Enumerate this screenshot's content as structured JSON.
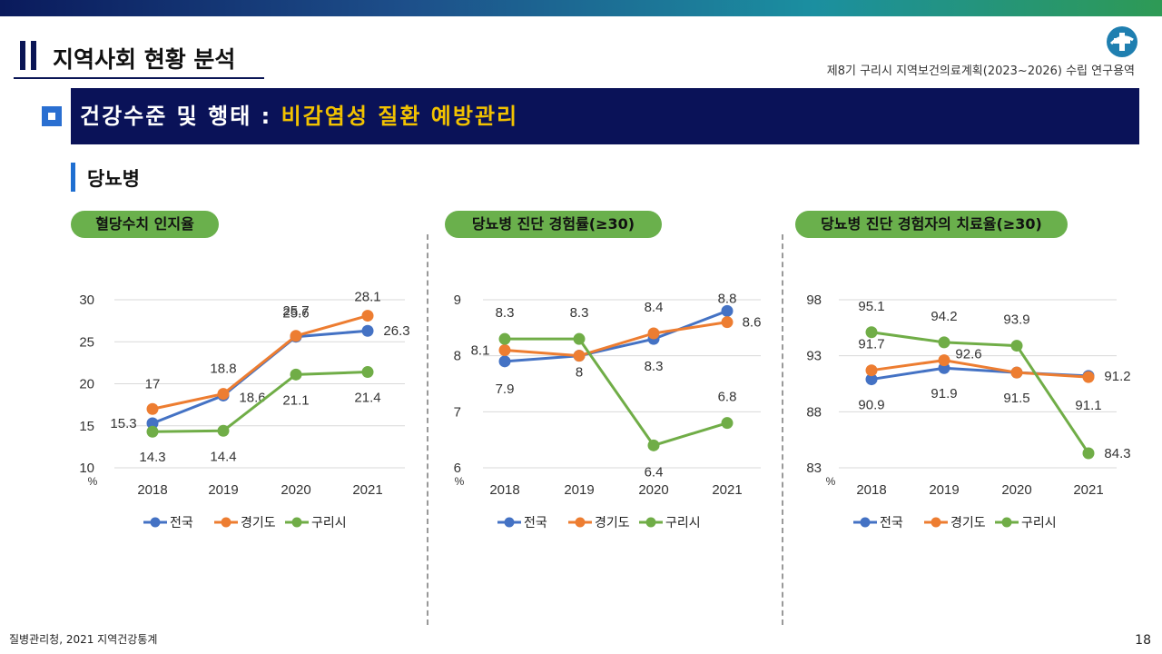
{
  "header": {
    "section_title": "지역사회 현황 분석",
    "project_title": "제8기 구리시 지역보건의료계획(2023~2026) 수립 연구용역",
    "banner_prefix": "건강수준 및 행태 : ",
    "banner_highlight": "비감염성 질환 예방관리",
    "subtitle": "당뇨병"
  },
  "colors": {
    "national": "#4472c4",
    "gyeonggi": "#ed7d31",
    "guri": "#70ad47",
    "banner_bg": "#0a1258",
    "highlight": "#f2c200",
    "pill_bg": "#6ab04c"
  },
  "chart_data": [
    {
      "type": "line",
      "title": "혈당수치 인지율",
      "x": [
        "2018",
        "2019",
        "2020",
        "2021"
      ],
      "unit": "%",
      "ylim": [
        10,
        30
      ],
      "yticks": [
        10,
        15,
        20,
        25,
        30
      ],
      "legend": "bottom",
      "series": [
        {
          "name": "전국",
          "values": [
            15.3,
            18.6,
            25.6,
            26.3
          ],
          "labels": [
            "15.3",
            "18.6",
            "25.6",
            "26.3"
          ]
        },
        {
          "name": "경기도",
          "values": [
            17,
            18.8,
            25.7,
            28.1
          ],
          "labels": [
            "17",
            "18.8",
            "25.7",
            "28.1"
          ]
        },
        {
          "name": "구리시",
          "values": [
            14.3,
            14.4,
            21.1,
            21.4
          ],
          "labels": [
            "14.3",
            "14.4",
            "21.1",
            "21.4"
          ]
        }
      ]
    },
    {
      "type": "line",
      "title": "당뇨병 진단 경험률(≥30)",
      "x": [
        "2018",
        "2019",
        "2020",
        "2021"
      ],
      "unit": "%",
      "ylim": [
        6,
        9
      ],
      "yticks": [
        6,
        7,
        8,
        9
      ],
      "legend": "bottom",
      "series": [
        {
          "name": "전국",
          "values": [
            7.9,
            8.0,
            8.3,
            8.8
          ],
          "labels": [
            "7.9",
            "8",
            "8.3",
            "8.8"
          ]
        },
        {
          "name": "경기도",
          "values": [
            8.1,
            8.0,
            8.4,
            8.6
          ],
          "labels": [
            "8.1",
            "",
            "8.4",
            "8.6"
          ]
        },
        {
          "name": "구리시",
          "values": [
            8.3,
            8.3,
            6.4,
            6.8
          ],
          "labels": [
            "8.3",
            "8.3",
            "6.4",
            "6.8"
          ]
        }
      ]
    },
    {
      "type": "line",
      "title": "당뇨병 진단 경험자의 치료율(≥30)",
      "x": [
        "2018",
        "2019",
        "2020",
        "2021"
      ],
      "unit": "%",
      "ylim": [
        83,
        98
      ],
      "yticks": [
        83,
        88,
        93,
        98
      ],
      "legend": "bottom",
      "series": [
        {
          "name": "전국",
          "values": [
            90.9,
            91.9,
            91.5,
            91.2
          ],
          "labels": [
            "90.9",
            "91.9",
            "91.5",
            "91.2"
          ]
        },
        {
          "name": "경기도",
          "values": [
            91.7,
            92.6,
            91.5,
            91.1
          ],
          "labels": [
            "91.7",
            "92.6",
            "",
            "91.1"
          ]
        },
        {
          "name": "구리시",
          "values": [
            95.1,
            94.2,
            93.9,
            84.3
          ],
          "labels": [
            "95.1",
            "94.2",
            "93.9",
            "84.3"
          ]
        }
      ]
    }
  ],
  "footer": {
    "source": "질병관리청, 2021 지역건강통계",
    "page": "18"
  }
}
